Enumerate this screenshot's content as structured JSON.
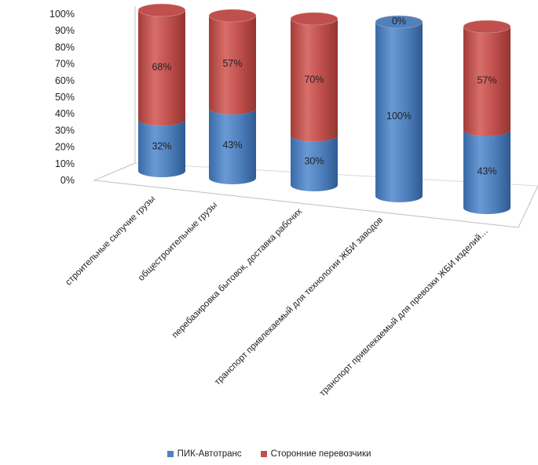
{
  "chart_data": {
    "type": "bar",
    "stacked": true,
    "style": "3d-cylinder",
    "categories": [
      "строительные сыпучие грузы",
      "общестроительные грузы",
      "перебазировка бытовок, доставка рабочих",
      "транспорт привлекаемый для технологии ЖБИ заводов",
      "транспорт привлекаемый для превозки ЖБИ изделий…"
    ],
    "series": [
      {
        "name": "ПИК-Автотранс",
        "values": [
          32,
          43,
          30,
          100,
          43
        ],
        "labels": [
          "32%",
          "43%",
          "30%",
          "100%",
          "43%"
        ]
      },
      {
        "name": "Сторонние перевозчики",
        "values": [
          68,
          57,
          70,
          0,
          57
        ],
        "labels": [
          "68%",
          "57%",
          "70%",
          "0%",
          "57%"
        ]
      }
    ],
    "y_ticks": [
      "0%",
      "10%",
      "20%",
      "30%",
      "40%",
      "50%",
      "60%",
      "70%",
      "80%",
      "90%",
      "100%"
    ],
    "ylim": [
      0,
      100
    ],
    "legend_position": "bottom",
    "grid": false,
    "colors": {
      "series1": "#4f81bd",
      "series2": "#c0504d"
    }
  }
}
